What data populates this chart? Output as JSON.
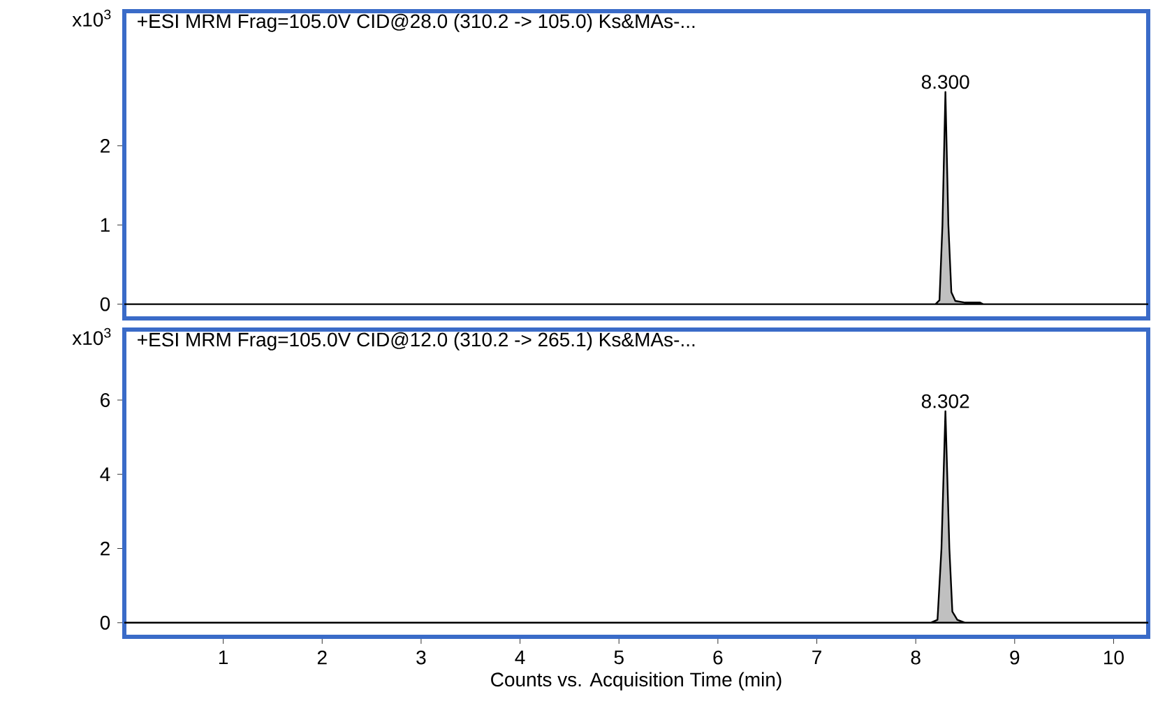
{
  "chart_data": [
    {
      "type": "area",
      "title": "+ESI MRM Frag=105.0V CID@28.0 (310.2 -> 105.0) Ks&MAs-...",
      "ylabel": "x10$^{3}$",
      "xlim": [
        0,
        10.35
      ],
      "ylim": [
        -0.18,
        3.7
      ],
      "yticks": [
        0,
        1,
        2
      ],
      "tick_labels": "y",
      "series": [
        {
          "color": "#c0c0c0",
          "x": [
            0,
            8.2,
            8.24,
            8.27,
            8.3,
            8.33,
            8.36,
            8.4,
            8.5,
            8.65,
            8.68,
            10.35
          ],
          "values": [
            0,
            0,
            0.05,
            1.0,
            2.68,
            1.0,
            0.15,
            0.04,
            0.02,
            0.02,
            0,
            0
          ]
        }
      ],
      "annotations": [
        {
          "text": "8.300",
          "x": 8.3,
          "y": 2.68
        }
      ]
    },
    {
      "type": "area",
      "title": "+ESI MRM Frag=105.0V CID@12.0 (310.2 -> 265.1) Ks&MAs-...",
      "ylabel": "x10$^{3}$",
      "xlabel": "Counts vs. Acquisition Time (min)",
      "xlim": [
        0,
        10.35
      ],
      "ylim": [
        -0.38,
        7.9
      ],
      "xticks": [
        1,
        2,
        3,
        4,
        5,
        6,
        7,
        8,
        9,
        10
      ],
      "yticks": [
        0,
        2,
        4,
        6
      ],
      "series": [
        {
          "color": "#c0c0c0",
          "x": [
            0,
            8.15,
            8.22,
            8.26,
            8.3,
            8.34,
            8.37,
            8.42,
            8.5,
            10.35
          ],
          "values": [
            0,
            0,
            0.08,
            2.0,
            5.7,
            2.0,
            0.3,
            0.08,
            0,
            0
          ]
        }
      ],
      "annotations": [
        {
          "text": "8.302",
          "x": 8.3,
          "y": 5.7
        }
      ]
    }
  ]
}
